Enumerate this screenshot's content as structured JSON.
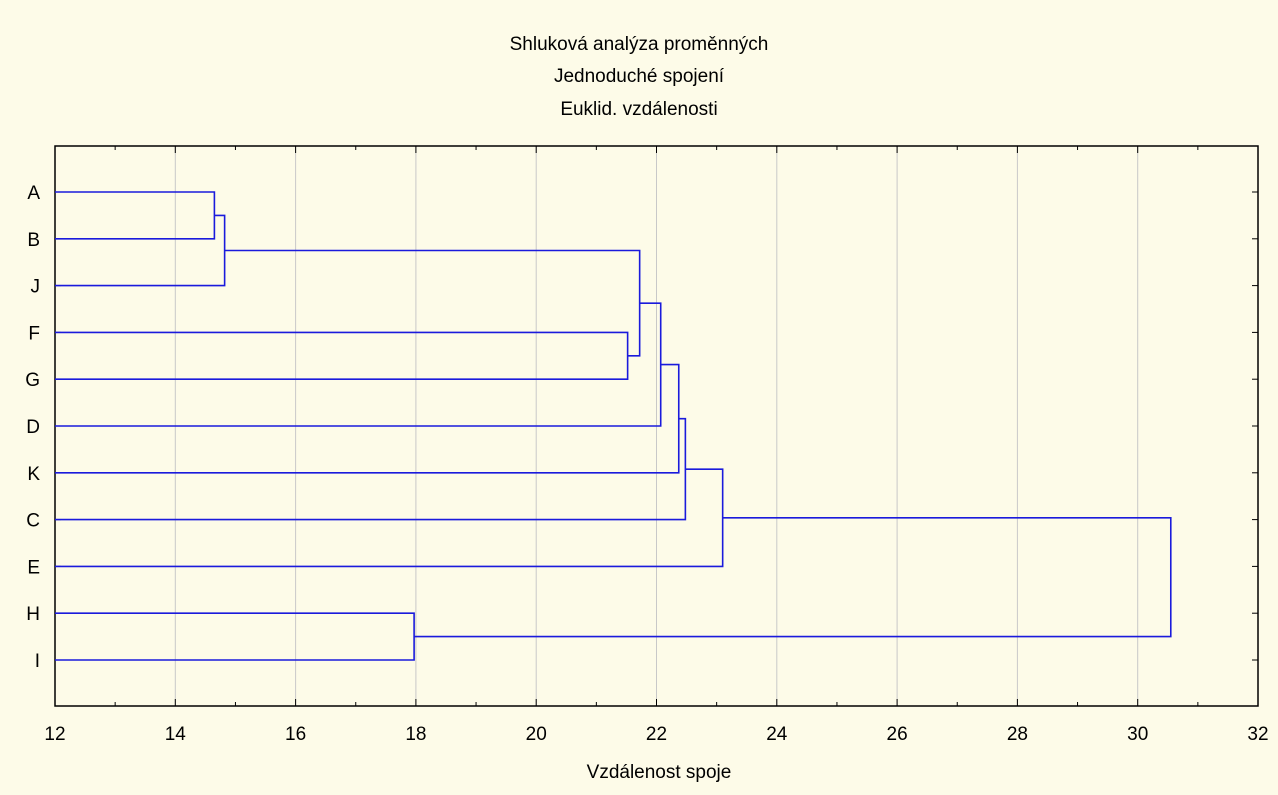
{
  "chart_data": {
    "type": "dendrogram",
    "title": [
      "Shluková analýza proměnných",
      "Jednoduché spojení",
      "Euklid. vzdálenosti"
    ],
    "xlabel": "Vzdálenost spoje",
    "ylabel": "",
    "xlim": [
      12,
      32
    ],
    "xticks": [
      12,
      14,
      16,
      18,
      20,
      22,
      24,
      26,
      28,
      30,
      32
    ],
    "grid": true,
    "leaves": [
      "A",
      "B",
      "J",
      "F",
      "G",
      "D",
      "K",
      "C",
      "E",
      "H",
      "I"
    ],
    "merges": [
      {
        "left": "A",
        "right": "B",
        "distance": 14.65
      },
      {
        "left": "AB",
        "right": "J",
        "distance": 14.82
      },
      {
        "left": "F",
        "right": "G",
        "distance": 21.52
      },
      {
        "left": "ABJ",
        "right": "FG",
        "distance": 21.72
      },
      {
        "left": "ABJFG",
        "right": "D",
        "distance": 22.07
      },
      {
        "left": "ABJFGD",
        "right": "K",
        "distance": 22.37
      },
      {
        "left": "ABJFGDK",
        "right": "C",
        "distance": 22.48
      },
      {
        "left": "ABJFGDKC",
        "right": "E",
        "distance": 23.1
      },
      {
        "left": "H",
        "right": "I",
        "distance": 17.97
      },
      {
        "left": "ABJFGDKCE",
        "right": "HI",
        "distance": 30.55
      }
    ],
    "line_color": "#1a1adc"
  }
}
